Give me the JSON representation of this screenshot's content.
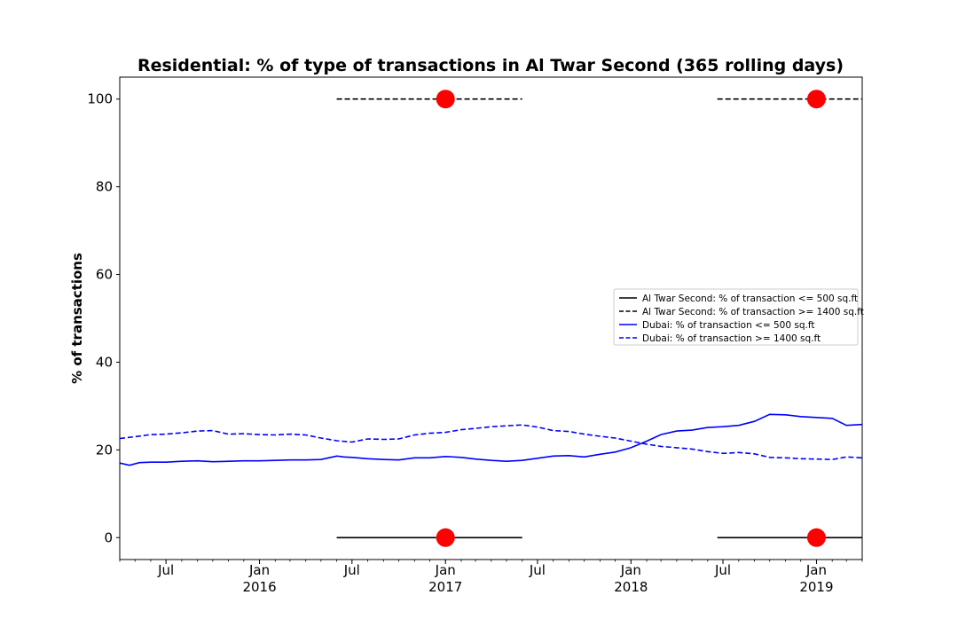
{
  "chart_data": {
    "type": "line",
    "title": "Residential: % of type of transactions in Al Twar Second (365 rolling days)",
    "xlabel": "",
    "ylabel": "% of transactions",
    "xlim": [
      "2015-04-01",
      "2019-04-01"
    ],
    "ylim": [
      -5,
      105
    ],
    "yticks": [
      0,
      20,
      40,
      60,
      80,
      100
    ],
    "xticks": [
      {
        "date": "2015-07-01",
        "label": "Jul",
        "sublabel": ""
      },
      {
        "date": "2016-01-01",
        "label": "Jan",
        "sublabel": "2016"
      },
      {
        "date": "2016-07-01",
        "label": "Jul",
        "sublabel": ""
      },
      {
        "date": "2017-01-01",
        "label": "Jan",
        "sublabel": "2017"
      },
      {
        "date": "2017-07-01",
        "label": "Jul",
        "sublabel": ""
      },
      {
        "date": "2018-01-01",
        "label": "Jan",
        "sublabel": "2018"
      },
      {
        "date": "2018-07-01",
        "label": "Jul",
        "sublabel": ""
      },
      {
        "date": "2019-01-01",
        "label": "Jan",
        "sublabel": "2019"
      }
    ],
    "grid": false,
    "legend_position": "center-right",
    "series": [
      {
        "name": "Al Twar Second: % of transaction <= 500 sq.ft",
        "color": "#000000",
        "style": "solid",
        "segments": [
          [
            [
              "2016-06-01",
              0
            ],
            [
              "2017-06-01",
              0
            ]
          ],
          [
            [
              "2018-06-20",
              0
            ],
            [
              "2019-04-01",
              0
            ]
          ]
        ]
      },
      {
        "name": "Al Twar Second: % of transaction >= 1400 sq.ft",
        "color": "#000000",
        "style": "dashed",
        "segments": [
          [
            [
              "2016-06-01",
              100
            ],
            [
              "2017-06-01",
              100
            ]
          ],
          [
            [
              "2018-06-20",
              100
            ],
            [
              "2019-04-01",
              100
            ]
          ]
        ]
      },
      {
        "name": "Dubai: % of transaction <= 500 sq.ft",
        "color": "#0000ff",
        "style": "solid",
        "segments": [
          [
            [
              "2015-04-01",
              17.0
            ],
            [
              "2015-04-20",
              16.5
            ],
            [
              "2015-05-10",
              17.1
            ],
            [
              "2015-06-01",
              17.2
            ],
            [
              "2015-07-01",
              17.2
            ],
            [
              "2015-08-01",
              17.4
            ],
            [
              "2015-09-01",
              17.5
            ],
            [
              "2015-10-01",
              17.3
            ],
            [
              "2015-11-01",
              17.4
            ],
            [
              "2015-12-01",
              17.5
            ],
            [
              "2016-01-01",
              17.5
            ],
            [
              "2016-02-01",
              17.6
            ],
            [
              "2016-03-01",
              17.7
            ],
            [
              "2016-04-01",
              17.7
            ],
            [
              "2016-05-01",
              17.8
            ],
            [
              "2016-05-20",
              18.3
            ],
            [
              "2016-06-01",
              18.6
            ],
            [
              "2016-06-15",
              18.4
            ],
            [
              "2016-07-01",
              18.3
            ],
            [
              "2016-08-01",
              18.0
            ],
            [
              "2016-09-01",
              17.8
            ],
            [
              "2016-10-01",
              17.7
            ],
            [
              "2016-11-01",
              18.2
            ],
            [
              "2016-12-01",
              18.2
            ],
            [
              "2017-01-01",
              18.5
            ],
            [
              "2017-02-01",
              18.3
            ],
            [
              "2017-03-01",
              17.9
            ],
            [
              "2017-04-01",
              17.6
            ],
            [
              "2017-05-01",
              17.4
            ],
            [
              "2017-06-01",
              17.6
            ],
            [
              "2017-07-01",
              18.1
            ],
            [
              "2017-08-01",
              18.6
            ],
            [
              "2017-09-01",
              18.7
            ],
            [
              "2017-10-01",
              18.4
            ],
            [
              "2017-11-01",
              19.0
            ],
            [
              "2017-12-01",
              19.5
            ],
            [
              "2018-01-01",
              20.5
            ],
            [
              "2018-02-01",
              22.0
            ],
            [
              "2018-03-01",
              23.5
            ],
            [
              "2018-04-01",
              24.3
            ],
            [
              "2018-05-01",
              24.5
            ],
            [
              "2018-06-01",
              25.1
            ],
            [
              "2018-07-01",
              25.3
            ],
            [
              "2018-08-01",
              25.6
            ],
            [
              "2018-09-01",
              26.5
            ],
            [
              "2018-10-01",
              28.1
            ],
            [
              "2018-11-01",
              28.0
            ],
            [
              "2018-12-01",
              27.6
            ],
            [
              "2019-01-01",
              27.4
            ],
            [
              "2019-02-01",
              27.2
            ],
            [
              "2019-03-01",
              25.6
            ],
            [
              "2019-04-01",
              25.8
            ]
          ]
        ]
      },
      {
        "name": "Dubai: % of transaction >= 1400 sq.ft",
        "color": "#0000ff",
        "style": "dashed",
        "segments": [
          [
            [
              "2015-04-01",
              22.6
            ],
            [
              "2015-05-01",
              23.0
            ],
            [
              "2015-06-01",
              23.5
            ],
            [
              "2015-07-01",
              23.6
            ],
            [
              "2015-08-01",
              23.9
            ],
            [
              "2015-09-01",
              24.3
            ],
            [
              "2015-10-01",
              24.4
            ],
            [
              "2015-11-01",
              23.6
            ],
            [
              "2015-12-01",
              23.7
            ],
            [
              "2016-01-01",
              23.5
            ],
            [
              "2016-02-01",
              23.4
            ],
            [
              "2016-03-01",
              23.6
            ],
            [
              "2016-04-01",
              23.4
            ],
            [
              "2016-05-01",
              22.7
            ],
            [
              "2016-06-01",
              22.1
            ],
            [
              "2016-07-01",
              21.8
            ],
            [
              "2016-08-01",
              22.5
            ],
            [
              "2016-09-01",
              22.4
            ],
            [
              "2016-10-01",
              22.5
            ],
            [
              "2016-11-01",
              23.4
            ],
            [
              "2016-12-01",
              23.8
            ],
            [
              "2017-01-01",
              24.0
            ],
            [
              "2017-02-01",
              24.6
            ],
            [
              "2017-03-01",
              24.9
            ],
            [
              "2017-04-01",
              25.3
            ],
            [
              "2017-05-01",
              25.5
            ],
            [
              "2017-06-01",
              25.7
            ],
            [
              "2017-07-01",
              25.2
            ],
            [
              "2017-08-01",
              24.4
            ],
            [
              "2017-09-01",
              24.2
            ],
            [
              "2017-10-01",
              23.6
            ],
            [
              "2017-11-01",
              23.1
            ],
            [
              "2017-12-01",
              22.7
            ],
            [
              "2018-01-01",
              22.0
            ],
            [
              "2018-02-01",
              21.3
            ],
            [
              "2018-03-01",
              20.8
            ],
            [
              "2018-04-01",
              20.5
            ],
            [
              "2018-05-01",
              20.2
            ],
            [
              "2018-06-01",
              19.6
            ],
            [
              "2018-07-01",
              19.2
            ],
            [
              "2018-08-01",
              19.4
            ],
            [
              "2018-09-01",
              19.1
            ],
            [
              "2018-10-01",
              18.3
            ],
            [
              "2018-11-01",
              18.2
            ],
            [
              "2018-12-01",
              18.0
            ],
            [
              "2019-01-01",
              17.9
            ],
            [
              "2019-02-01",
              17.8
            ],
            [
              "2019-03-01",
              18.4
            ],
            [
              "2019-04-01",
              18.2
            ]
          ]
        ]
      }
    ],
    "markers": {
      "color": "#ff0000",
      "points": [
        [
          "2017-01-01",
          100
        ],
        [
          "2019-01-01",
          100
        ],
        [
          "2017-01-01",
          0
        ],
        [
          "2019-01-01",
          0
        ]
      ]
    }
  }
}
